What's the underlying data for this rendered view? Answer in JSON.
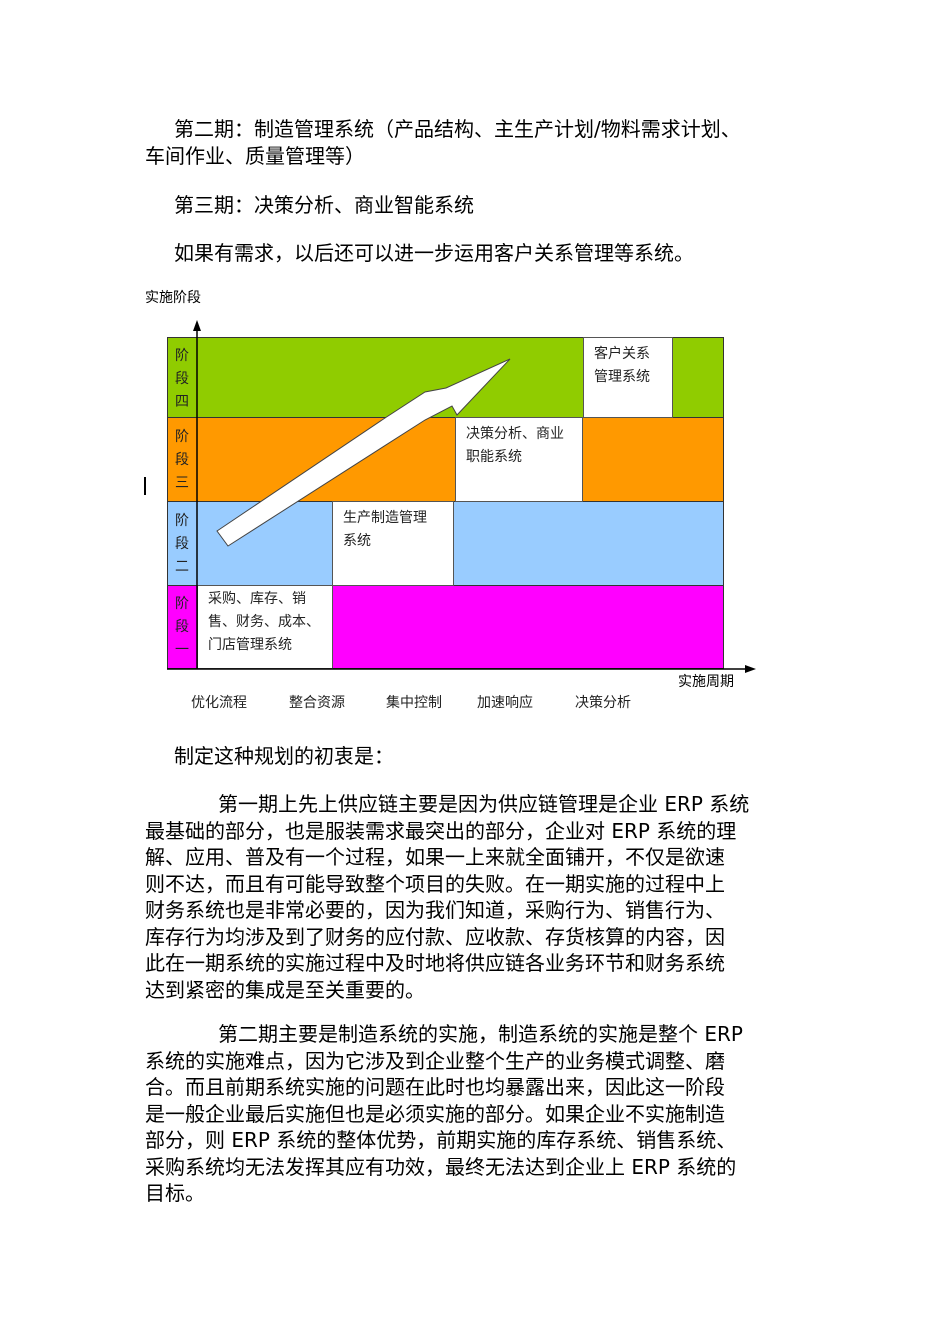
{
  "paragraphs_top": [
    {
      "lines": [
        "第二期：制造管理系统（产品结构、主生产计划/物料需求计划、",
        "车间作业、质量管理等）"
      ]
    },
    {
      "lines": [
        "第三期：决策分析、商业智能系统"
      ]
    },
    {
      "lines": [
        "如果有需求，以后还可以进一步运用客户关系管理等系统。"
      ]
    }
  ],
  "diagram": {
    "y_axis_label": "实施阶段",
    "x_axis_label": "实施周期",
    "stages": [
      {
        "label": "阶段四",
        "color": "#90cc00",
        "box": [
          "客户关系",
          "管理系统"
        ]
      },
      {
        "label": "阶段三",
        "color": "#ff9900",
        "box": [
          "决策分析、商业",
          "职能系统"
        ]
      },
      {
        "label": "阶段二",
        "color": "#99ccff",
        "box": [
          "生产制造管理",
          "系统"
        ]
      },
      {
        "label": "阶段一",
        "color": "#ff00ff",
        "box": [
          "采购、库存、销",
          "售、财务、成本、",
          "门店管理系统"
        ]
      }
    ],
    "x_labels": [
      "优化流程",
      "整合资源",
      "集中控制",
      "加速响应",
      "决策分析"
    ]
  },
  "paragraphs_bottom": [
    {
      "lines": [
        "制定这种规划的初衷是："
      ]
    },
    {
      "lines": [
        "第一期上先上供应链主要是因为供应链管理是企业 ERP 系统",
        "最基础的部分，也是服装需求最突出的部分，企业对 ERP 系统的理",
        "解、应用、普及有一个过程，如果一上来就全面铺开，不仅是欲速",
        "则不达，而且有可能导致整个项目的失败。在一期实施的过程中上",
        "财务系统也是非常必要的，因为我们知道，采购行为、销售行为、",
        "库存行为均涉及到了财务的应付款、应收款、存货核算的内容，因",
        "此在一期系统的实施过程中及时地将供应链各业务环节和财务系统",
        "达到紧密的集成是至关重要的。"
      ]
    },
    {
      "lines": [
        "第二期主要是制造系统的实施，制造系统的实施是整个 ERP",
        "系统的实施难点，因为它涉及到企业整个生产的业务模式调整、磨",
        "合。而且前期系统实施的问题在此时也均暴露出来，因此这一阶段",
        "是一般企业最后实施但也是必须实施的部分。如果企业不实施制造",
        "部分，则 ERP 系统的整体优势，前期实施的库存系统、销售系统、",
        "采购系统均无法发挥其应有功效，最终无法达到企业上 ERP 系统的",
        "目标。"
      ]
    }
  ]
}
